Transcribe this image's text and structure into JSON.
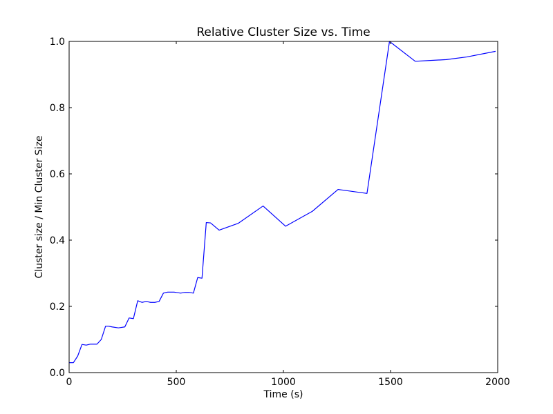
{
  "chart_data": {
    "type": "line",
    "title": "Relative Cluster Size  vs. Time",
    "xlabel": "Time (s)",
    "ylabel": "Cluster size / Min Cluster Size",
    "xlim": [
      0,
      2000
    ],
    "ylim": [
      0.0,
      1.0
    ],
    "xticks": [
      0,
      500,
      1000,
      1500,
      2000
    ],
    "xtick_labels": [
      "0",
      "500",
      "1000",
      "1500",
      "2000"
    ],
    "yticks": [
      0.0,
      0.2,
      0.4,
      0.6,
      0.8,
      1.0
    ],
    "ytick_labels": [
      "0.0",
      "0.2",
      "0.4",
      "0.6",
      "0.8",
      "1.0"
    ],
    "grid": false,
    "legend": "none",
    "series": [
      {
        "color": "#0000ff",
        "x": [
          0,
          20,
          40,
          60,
          80,
          100,
          130,
          150,
          170,
          185,
          200,
          230,
          260,
          280,
          300,
          320,
          340,
          360,
          380,
          400,
          420,
          440,
          460,
          490,
          520,
          540,
          560,
          580,
          600,
          620,
          640,
          660,
          700,
          790,
          905,
          1010,
          1135,
          1255,
          1390,
          1495,
          1615,
          1760,
          1855,
          1990
        ],
        "y": [
          0.03,
          0.03,
          0.05,
          0.085,
          0.083,
          0.086,
          0.086,
          0.1,
          0.14,
          0.14,
          0.138,
          0.135,
          0.138,
          0.165,
          0.163,
          0.217,
          0.212,
          0.215,
          0.212,
          0.212,
          0.215,
          0.24,
          0.243,
          0.243,
          0.24,
          0.242,
          0.242,
          0.24,
          0.287,
          0.285,
          0.453,
          0.452,
          0.43,
          0.451,
          0.503,
          0.442,
          0.487,
          0.553,
          0.541,
          1.0,
          0.94,
          0.945,
          0.953,
          0.97
        ]
      }
    ]
  }
}
